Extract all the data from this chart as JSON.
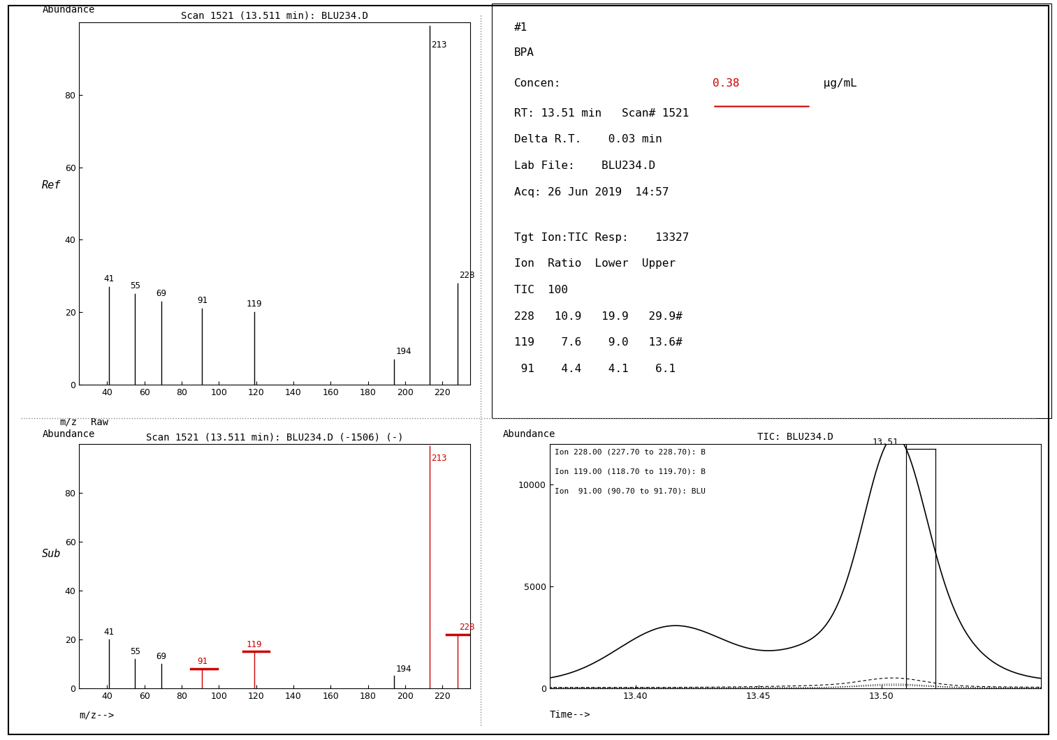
{
  "top_left": {
    "title": "Scan 1521 (13.511 min): BLU234.D",
    "ylabel_top": "Abundance",
    "ylabel_mid": "Ref",
    "xlabel_left": "m/z",
    "xlabel_right": "Raw",
    "xlim": [
      25,
      235
    ],
    "ylim": [
      0,
      100
    ],
    "yticks": [
      0,
      20,
      40,
      60,
      80
    ],
    "xticks": [
      40,
      60,
      80,
      100,
      120,
      140,
      160,
      180,
      200,
      220
    ],
    "peaks": [
      {
        "mz": 41,
        "abundance": 27,
        "label": "41"
      },
      {
        "mz": 55,
        "abundance": 25,
        "label": "55"
      },
      {
        "mz": 69,
        "abundance": 23,
        "label": "69"
      },
      {
        "mz": 91,
        "abundance": 21,
        "label": "91"
      },
      {
        "mz": 119,
        "abundance": 20,
        "label": "119"
      },
      {
        "mz": 194,
        "abundance": 7,
        "label": "194"
      },
      {
        "mz": 213,
        "abundance": 99,
        "label": "213"
      },
      {
        "mz": 228,
        "abundance": 28,
        "label": "228"
      }
    ]
  },
  "bottom_left": {
    "title": "Scan 1521 (13.511 min): BLU234.D (-1506) (-)",
    "ylabel_top": "Abundance",
    "ylabel_mid": "Sub",
    "xlabel": "m/z-->",
    "xlim": [
      25,
      235
    ],
    "ylim": [
      0,
      100
    ],
    "yticks": [
      0,
      20,
      40,
      60,
      80
    ],
    "xticks": [
      40,
      60,
      80,
      100,
      120,
      140,
      160,
      180,
      200,
      220
    ],
    "peaks": [
      {
        "mz": 41,
        "abundance": 20,
        "label": "41",
        "red": false
      },
      {
        "mz": 55,
        "abundance": 12,
        "label": "55",
        "red": false
      },
      {
        "mz": 69,
        "abundance": 10,
        "label": "69",
        "red": false
      },
      {
        "mz": 91,
        "abundance": 8,
        "label": "91",
        "red": true
      },
      {
        "mz": 119,
        "abundance": 15,
        "label": "119",
        "red": true
      },
      {
        "mz": 194,
        "abundance": 5,
        "label": "194",
        "red": false
      },
      {
        "mz": 213,
        "abundance": 99,
        "label": "213",
        "red": true
      },
      {
        "mz": 228,
        "abundance": 22,
        "label": "228",
        "red": true
      }
    ]
  },
  "top_right_text": {
    "line1": "#1",
    "line2": "BPA",
    "line3a": "Concen:",
    "line3b": "0.38",
    "line3c": "μg/mL",
    "line4": "RT: 13.51 min   Scan# 1521",
    "line5": "Delta R.T.    0.03 min",
    "line6": "Lab File:    BLU234.D",
    "line7": "Acq: 26 Jun 2019  14:57",
    "line8": "Tgt Ion:TIC Resp:    13327",
    "line9": "Ion  Ratio  Lower  Upper",
    "line10": "TIC  100",
    "line11": "228   10.9   19.9   29.9#",
    "line12": "119    7.6    9.0   13.6#",
    "line13": " 91    4.4    4.1    6.1"
  },
  "bottom_right": {
    "title": "TIC: BLU234.D",
    "ylabel": "Abundance",
    "xlabel": "Time-->",
    "legend_lines": [
      "Ion 228.00 (227.70 to 228.70): B",
      "Ion 119.00 (118.70 to 119.70): B",
      "Ion  91.00 (90.70 to 91.70): BLU"
    ],
    "xlim": [
      13.365,
      13.565
    ],
    "ylim": [
      0,
      12000
    ],
    "xticks": [
      13.4,
      13.45,
      13.5
    ],
    "yticks": [
      0,
      5000,
      10000
    ],
    "peak_time": 13.51,
    "peak_label": "13.51"
  },
  "bg_color": "#ffffff",
  "red_color": "#cc0000"
}
